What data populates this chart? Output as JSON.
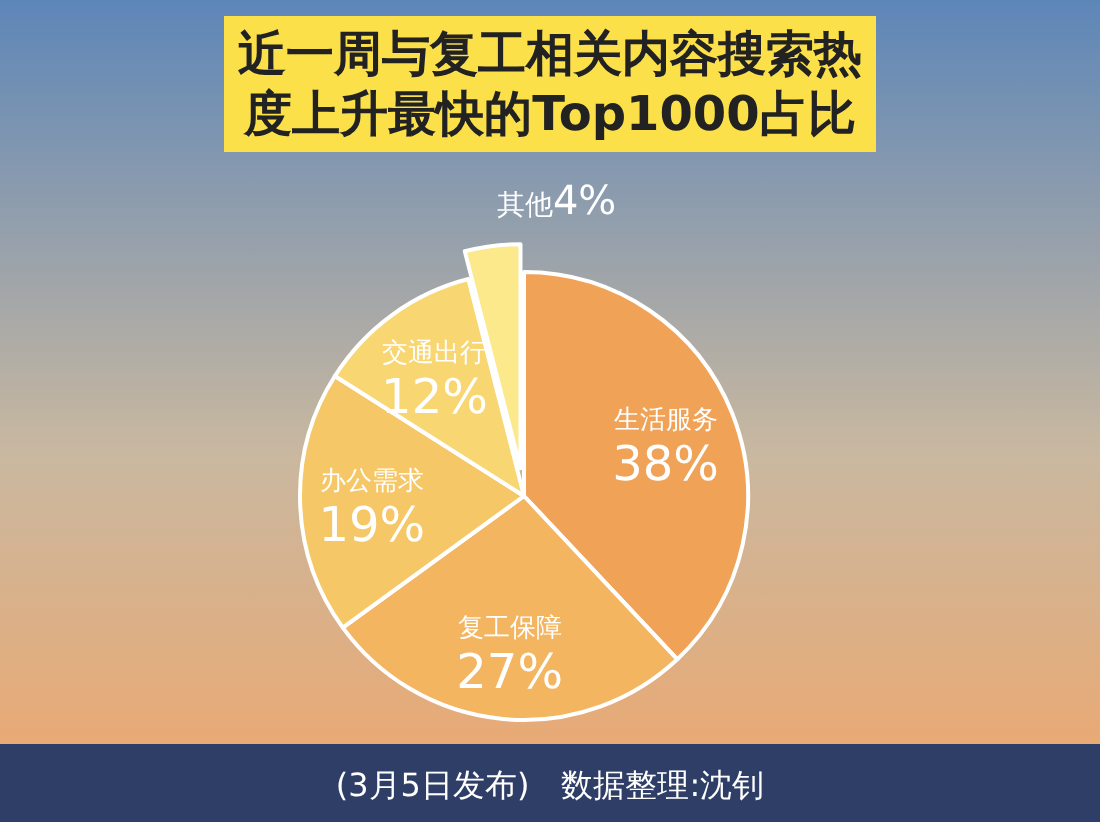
{
  "chart_data": {
    "type": "pie",
    "title": "近一周与复工相关内容搜索热度上升最快的Top1000占比",
    "categories": [
      "生活服务",
      "复工保障",
      "办公需求",
      "交通出行",
      "其他"
    ],
    "values": [
      38,
      27,
      19,
      12,
      4
    ],
    "value_labels": [
      "38%",
      "27%",
      "19%",
      "12%",
      "4%"
    ],
    "colors": [
      "#f0a257",
      "#f4b560",
      "#f6c766",
      "#f8d672",
      "#fbe98c"
    ],
    "annotations": [
      "(3月5日发布)",
      "数据整理:沈钊"
    ]
  }
}
